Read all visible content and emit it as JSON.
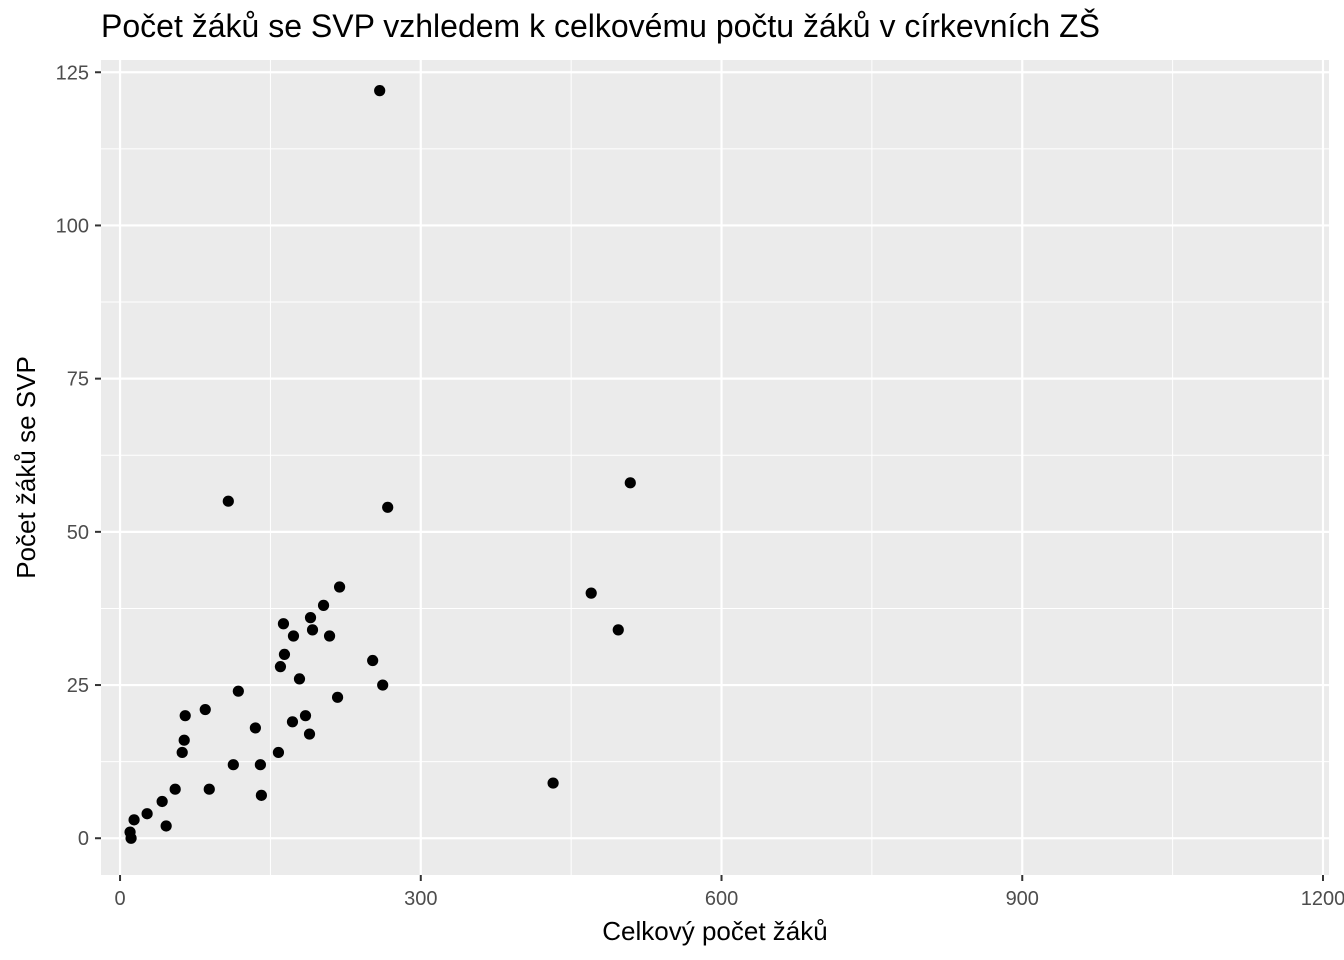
{
  "chart_data": {
    "type": "scatter",
    "title": "Počet žáků se SVP vzhledem k celkovému počtu žáků v církevních ZŠ",
    "xlabel": "Celkový počet žáků",
    "ylabel": "Počet žáků se SVP",
    "xlim": [
      -19,
      1206
    ],
    "ylim": [
      -6,
      127
    ],
    "x_ticks": [
      0,
      300,
      600,
      900,
      1200
    ],
    "y_ticks": [
      0,
      25,
      50,
      75,
      100,
      125
    ],
    "x_tick_labels": [
      "0",
      "300",
      "600",
      "900",
      "1200"
    ],
    "y_tick_labels": [
      "0",
      "25",
      "50",
      "75",
      "100",
      "125"
    ],
    "grid": true,
    "legend": "none",
    "colors": {
      "panel": "#ebebeb",
      "grid": "#ffffff",
      "point": "#000000",
      "tick_text": "#4d4d4d",
      "tick_mark": "#333333"
    },
    "points": [
      {
        "x": 10,
        "y": 1
      },
      {
        "x": 11,
        "y": 0
      },
      {
        "x": 14,
        "y": 3
      },
      {
        "x": 27,
        "y": 4
      },
      {
        "x": 42,
        "y": 6
      },
      {
        "x": 46,
        "y": 2
      },
      {
        "x": 55,
        "y": 8
      },
      {
        "x": 62,
        "y": 14
      },
      {
        "x": 64,
        "y": 16
      },
      {
        "x": 65,
        "y": 20
      },
      {
        "x": 85,
        "y": 21
      },
      {
        "x": 89,
        "y": 8
      },
      {
        "x": 108,
        "y": 55
      },
      {
        "x": 113,
        "y": 12
      },
      {
        "x": 118,
        "y": 24
      },
      {
        "x": 135,
        "y": 18
      },
      {
        "x": 140,
        "y": 12
      },
      {
        "x": 141,
        "y": 7
      },
      {
        "x": 158,
        "y": 14
      },
      {
        "x": 160,
        "y": 28
      },
      {
        "x": 163,
        "y": 35
      },
      {
        "x": 164,
        "y": 30
      },
      {
        "x": 172,
        "y": 19
      },
      {
        "x": 173,
        "y": 33
      },
      {
        "x": 179,
        "y": 26
      },
      {
        "x": 185,
        "y": 20
      },
      {
        "x": 189,
        "y": 17
      },
      {
        "x": 190,
        "y": 36
      },
      {
        "x": 192,
        "y": 34
      },
      {
        "x": 203,
        "y": 38
      },
      {
        "x": 209,
        "y": 33
      },
      {
        "x": 217,
        "y": 23
      },
      {
        "x": 219,
        "y": 41
      },
      {
        "x": 252,
        "y": 29
      },
      {
        "x": 259,
        "y": 122
      },
      {
        "x": 262,
        "y": 25
      },
      {
        "x": 267,
        "y": 54
      },
      {
        "x": 432,
        "y": 9
      },
      {
        "x": 470,
        "y": 40
      },
      {
        "x": 497,
        "y": 34
      },
      {
        "x": 509,
        "y": 58
      }
    ]
  }
}
